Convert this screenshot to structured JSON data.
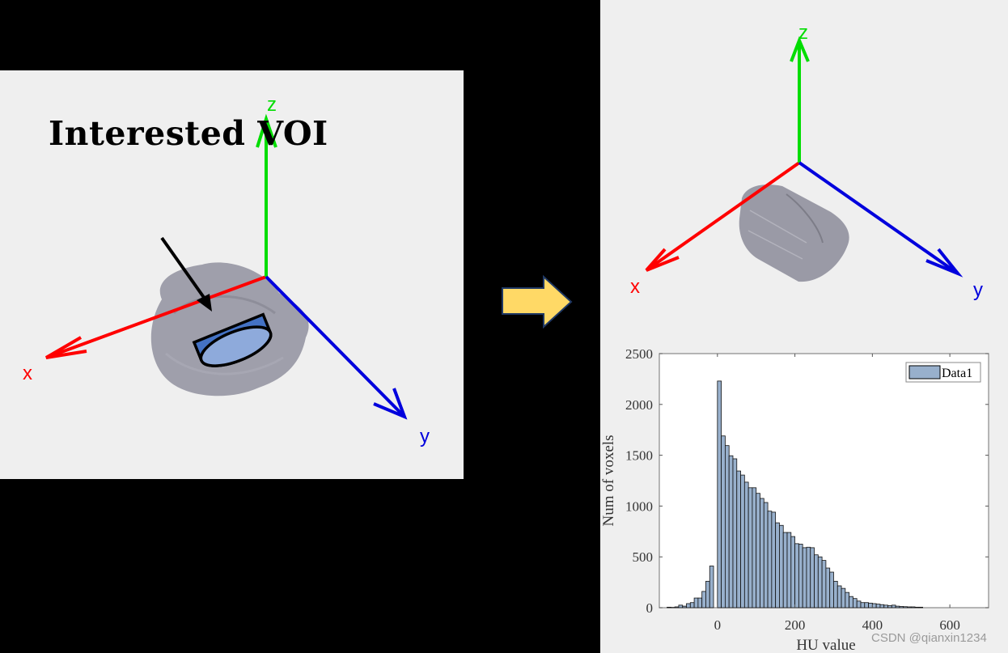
{
  "left_panel": {
    "title": "Interested VOI",
    "axes": {
      "x_label": "x",
      "y_label": "y",
      "z_label": "z"
    },
    "colors": {
      "x_axis": "#ff0000",
      "y_axis": "#0000dd",
      "z_axis": "#00dd00",
      "voi_side": "#4472c4",
      "voi_top": "#8eaadb",
      "tumor": "#9a9aa6",
      "background": "#efefef"
    }
  },
  "transition_arrow": {
    "icon": "right-arrow-icon",
    "fill": "#ffd966",
    "stroke": "#1f3864"
  },
  "right_panel": {
    "axes": {
      "x_label": "x",
      "y_label": "y",
      "z_label": "z"
    },
    "colors": {
      "cylinder": "#9a9aa6",
      "background": "#efefef"
    }
  },
  "chart_data": {
    "type": "bar",
    "title": "",
    "xlabel": "HU value",
    "ylabel": "Num of voxels",
    "xlim": [
      -150,
      700
    ],
    "ylim": [
      0,
      2500
    ],
    "xticks": [
      0,
      200,
      400,
      600
    ],
    "yticks": [
      0,
      500,
      1000,
      1500,
      2000,
      2500
    ],
    "grid": false,
    "legend": {
      "entries": [
        "Data1"
      ],
      "position": "upper right"
    },
    "bar_color": "#98b0cc",
    "bin_width": 10,
    "bin_start": -130,
    "categories": [
      -130,
      -120,
      -110,
      -100,
      -90,
      -80,
      -70,
      -60,
      -50,
      -40,
      -30,
      -20,
      -10,
      0,
      10,
      20,
      30,
      40,
      50,
      60,
      70,
      80,
      90,
      100,
      110,
      120,
      130,
      140,
      150,
      160,
      170,
      180,
      190,
      200,
      210,
      220,
      230,
      240,
      250,
      260,
      270,
      280,
      290,
      300,
      310,
      320,
      330,
      340,
      350,
      360,
      370,
      380,
      390,
      400,
      410,
      420,
      430,
      440,
      450,
      460,
      470,
      480,
      490,
      500,
      510,
      520
    ],
    "values": [
      5,
      3,
      8,
      25,
      15,
      40,
      50,
      95,
      95,
      160,
      260,
      410,
      0,
      2230,
      1690,
      1595,
      1495,
      1465,
      1345,
      1305,
      1235,
      1180,
      1180,
      1125,
      1075,
      1035,
      950,
      940,
      835,
      810,
      740,
      740,
      700,
      630,
      625,
      590,
      595,
      590,
      520,
      500,
      465,
      390,
      350,
      260,
      215,
      190,
      150,
      110,
      90,
      65,
      50,
      50,
      45,
      40,
      35,
      30,
      25,
      20,
      25,
      15,
      12,
      10,
      8,
      8,
      5,
      5
    ]
  },
  "watermark": "CSDN @qianxin1234"
}
